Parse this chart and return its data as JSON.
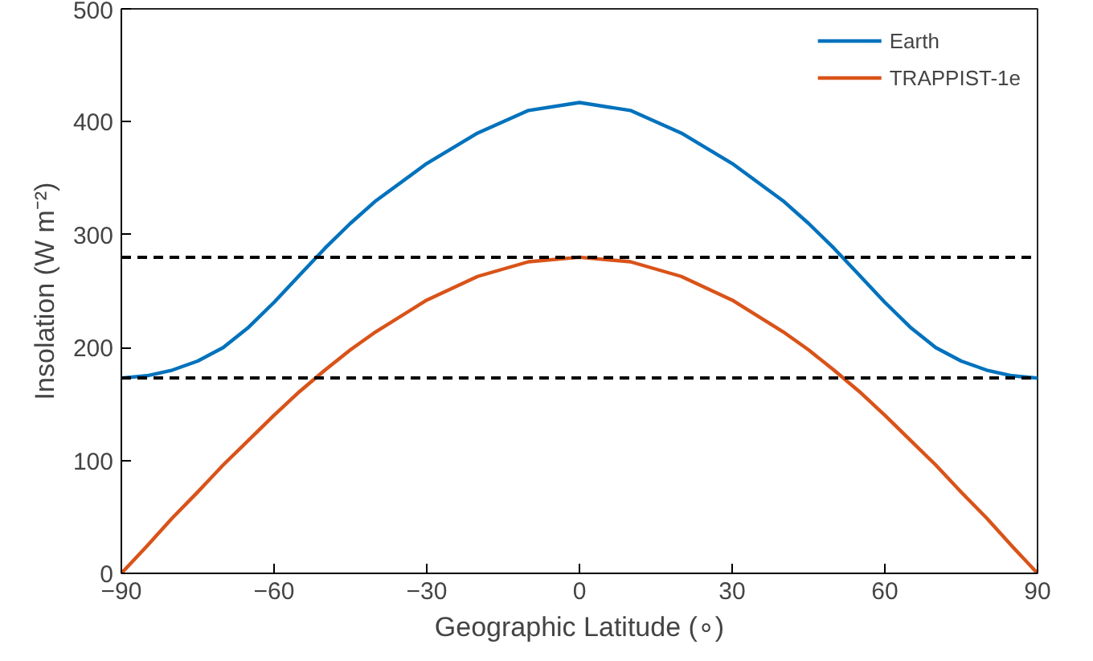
{
  "chart_data": {
    "type": "line",
    "xlabel": "Geographic Latitude (∘)",
    "ylabel": "Insolation (W m⁻²)",
    "x": [
      -90,
      -85,
      -80,
      -75,
      -70,
      -65,
      -60,
      -55,
      -50,
      -45,
      -40,
      -30,
      -20,
      -10,
      0,
      10,
      20,
      30,
      40,
      45,
      50,
      55,
      60,
      65,
      70,
      75,
      80,
      85,
      90
    ],
    "series": [
      {
        "name": "Earth",
        "color": "#0072bd",
        "values": [
          173,
          175,
          180,
          188,
          200,
          218,
          240,
          264,
          288,
          310,
          330,
          363,
          390,
          410,
          417,
          410,
          390,
          363,
          330,
          310,
          288,
          264,
          240,
          218,
          200,
          188,
          180,
          175,
          173
        ]
      },
      {
        "name": "TRAPPIST-1e",
        "color": "#d95319",
        "values": [
          0,
          24,
          49,
          72,
          96,
          118,
          140,
          161,
          180,
          198,
          214,
          242,
          263,
          276,
          280,
          276,
          263,
          242,
          214,
          198,
          180,
          161,
          140,
          118,
          96,
          72,
          49,
          24,
          0
        ]
      }
    ],
    "ref_lines": [
      {
        "axis": "y",
        "value": 280,
        "color": "#000000",
        "line_style": "dashed"
      },
      {
        "axis": "y",
        "value": 173,
        "color": "#000000",
        "line_style": "dashed"
      }
    ],
    "xlim": [
      -90,
      90
    ],
    "xticks": [
      -90,
      -60,
      -30,
      0,
      30,
      60,
      90
    ],
    "ylim": [
      0,
      500
    ],
    "yticks": [
      0,
      100,
      200,
      300,
      400,
      500
    ],
    "grid": false,
    "legend": "top right",
    "line_style": "solid",
    "marker": "none"
  }
}
